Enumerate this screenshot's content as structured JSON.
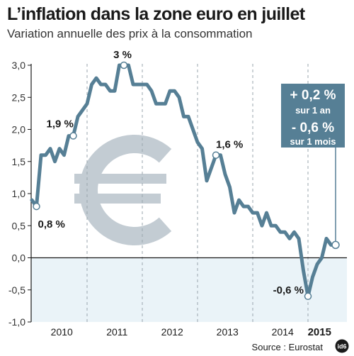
{
  "title": "L’inflation dans la zone euro en juillet",
  "subtitle": "Variation annuelle des prix à la consommation",
  "source": "Source : Eurostat",
  "logo_text": "id6",
  "colors": {
    "line": "#567f95",
    "negative_band": "#eaf3f8",
    "euro_symbol": "#c3ccd3",
    "box": "#567f95",
    "marker_fill": "#ffffff"
  },
  "callout": {
    "big1": "+ 0,2 %",
    "small1": "sur 1 an",
    "big2": "- 0,6 %",
    "small2": "sur 1 mois"
  },
  "chart_data": {
    "type": "line",
    "title": "L’inflation dans la zone euro en juillet",
    "subtitle": "Variation annuelle des prix à la consommation",
    "ylim": [
      -1.0,
      3.0
    ],
    "y_ticks": [
      {
        "v": 3.0,
        "label": "3,0"
      },
      {
        "v": 2.5,
        "label": "2,5"
      },
      {
        "v": 2.0,
        "label": "2,0"
      },
      {
        "v": 1.5,
        "label": "1,5"
      },
      {
        "v": 1.0,
        "label": "1,0"
      },
      {
        "v": 0.5,
        "label": "0,5"
      },
      {
        "v": 0.0,
        "label": "0,0"
      },
      {
        "v": -0.5,
        "label": "-0,5"
      },
      {
        "v": -1.0,
        "label": "-1,0"
      }
    ],
    "x_labels": [
      {
        "label": "2010",
        "t": 6.5,
        "bold": false
      },
      {
        "label": "2011",
        "t": 18.5,
        "bold": false
      },
      {
        "label": "2012",
        "t": 30.5,
        "bold": false
      },
      {
        "label": "2013",
        "t": 42.5,
        "bold": false
      },
      {
        "label": "2014",
        "t": 54.5,
        "bold": false
      },
      {
        "label": "2015",
        "t": 62.5,
        "bold": true
      }
    ],
    "series": [
      {
        "values": [
          0.9,
          0.8,
          1.6,
          1.6,
          1.7,
          1.5,
          1.7,
          1.6,
          1.9,
          1.9,
          2.2,
          2.3,
          2.4,
          2.7,
          2.8,
          2.7,
          2.7,
          2.6,
          2.6,
          3.0,
          3.0,
          3.0,
          2.7,
          2.7,
          2.7,
          2.7,
          2.6,
          2.4,
          2.4,
          2.4,
          2.6,
          2.6,
          2.5,
          2.2,
          2.2,
          2.0,
          1.8,
          1.7,
          1.2,
          1.4,
          1.6,
          1.6,
          1.3,
          1.1,
          0.7,
          0.9,
          0.8,
          0.8,
          0.7,
          0.7,
          0.5,
          0.7,
          0.5,
          0.5,
          0.4,
          0.4,
          0.3,
          0.4,
          0.3,
          -0.2,
          -0.6,
          -0.3,
          -0.1,
          0.0,
          0.3,
          0.2,
          0.2
        ]
      }
    ],
    "annotations": [
      {
        "label": "0,8 %",
        "index": 1
      },
      {
        "label": "1,9 %",
        "index": 9
      },
      {
        "label": "3 %",
        "index": 20
      },
      {
        "label": "1,6 %",
        "index": 40
      },
      {
        "label": "-0,6 %",
        "index": 60
      }
    ]
  }
}
